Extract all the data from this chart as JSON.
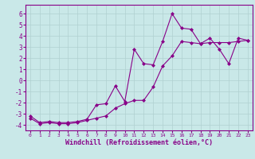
{
  "xlabel": "Windchill (Refroidissement éolien,°C)",
  "background_color": "#c9e8e8",
  "grid_color": "#b0d0d0",
  "line_color": "#880088",
  "xlim": [
    -0.5,
    23.5
  ],
  "ylim": [
    -4.5,
    6.8
  ],
  "yticks": [
    -4,
    -3,
    -2,
    -1,
    0,
    1,
    2,
    3,
    4,
    5,
    6
  ],
  "xticks": [
    0,
    1,
    2,
    3,
    4,
    5,
    6,
    7,
    8,
    9,
    10,
    11,
    12,
    13,
    14,
    15,
    16,
    17,
    18,
    19,
    20,
    21,
    22,
    23
  ],
  "x_data": [
    0,
    1,
    2,
    3,
    4,
    5,
    6,
    7,
    8,
    9,
    10,
    11,
    12,
    13,
    14,
    15,
    16,
    17,
    18,
    19,
    20,
    21,
    22,
    23
  ],
  "y_line1": [
    -3.2,
    -3.8,
    -3.7,
    -3.8,
    -3.8,
    -3.7,
    -3.5,
    -2.2,
    -2.1,
    -0.5,
    -1.9,
    2.8,
    1.5,
    1.4,
    3.5,
    6.0,
    4.7,
    4.6,
    3.3,
    3.8,
    2.8,
    1.5,
    3.8,
    3.6
  ],
  "y_line2": [
    -3.4,
    -3.9,
    -3.8,
    -3.9,
    -3.9,
    -3.8,
    -3.6,
    -3.4,
    -3.2,
    -2.5,
    -2.1,
    -1.8,
    -1.8,
    -0.6,
    1.3,
    2.2,
    3.5,
    3.4,
    3.3,
    3.4,
    3.4,
    3.4,
    3.5,
    3.6
  ],
  "marker": "D",
  "marker_size": 2.0,
  "linewidth": 0.8,
  "tick_fontsize_x": 4.5,
  "tick_fontsize_y": 5.5,
  "xlabel_fontsize": 6.0
}
